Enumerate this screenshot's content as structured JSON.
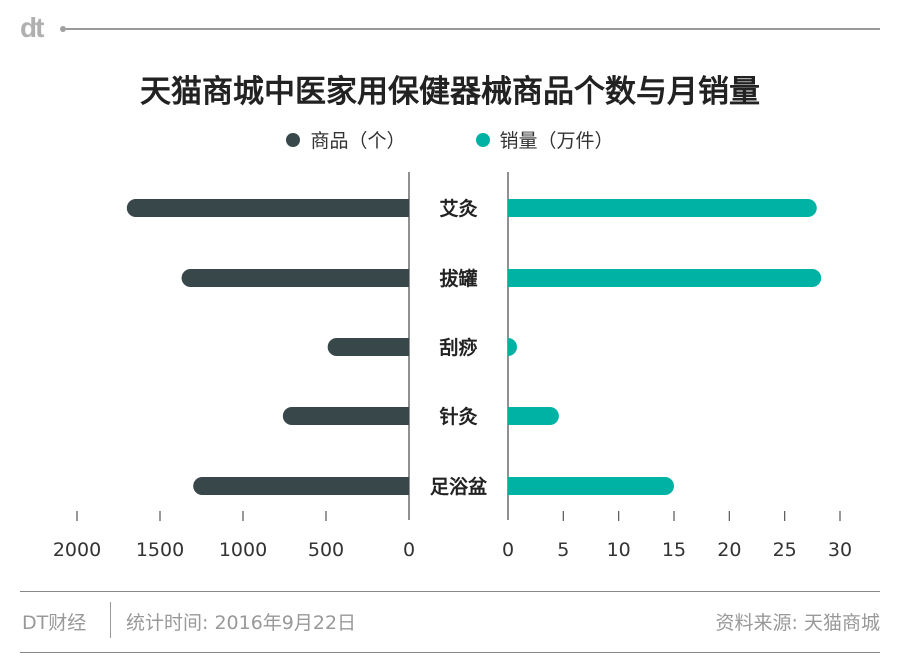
{
  "brand": {
    "logo_text": "dt"
  },
  "chart_data": {
    "type": "bar",
    "title": "天猫商城中医家用保健器械商品个数与月销量",
    "categories": [
      "艾灸",
      "拔罐",
      "刮痧",
      "针灸",
      "足浴盆"
    ],
    "series": [
      {
        "name": "商品（个）",
        "values": [
          1700,
          1370,
          490,
          760,
          1300
        ],
        "color": "#37474a",
        "xlim": [
          0,
          2000
        ],
        "ticks": [
          "2000",
          "1500",
          "1000",
          "500",
          "0"
        ],
        "direction": "left"
      },
      {
        "name": "销量（万件）",
        "values": [
          27.9,
          28.3,
          0.7,
          4.6,
          15.0
        ],
        "color": "#00b2a4",
        "xlim": [
          0,
          30
        ],
        "ticks": [
          "0",
          "5",
          "10",
          "15",
          "20",
          "25",
          "30"
        ],
        "direction": "right"
      }
    ],
    "legend_position": "top",
    "grid": false
  },
  "footer": {
    "source_brand": "DT财经",
    "stat_time": "统计时间: 2016年9月22日",
    "data_source": "资料来源: 天猫商城"
  }
}
